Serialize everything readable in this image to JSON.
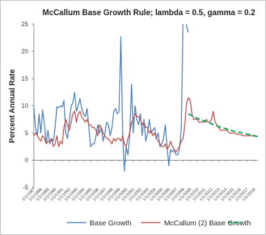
{
  "chart_data": {
    "type": "line",
    "title": "McCallum Base Growth Rule; lambda = 0.5, gamma = 0.2",
    "ylabel": "Percent Annual Rate",
    "xlabel": "",
    "ylim": [
      -5,
      25
    ],
    "yticks": [
      -5,
      0,
      5,
      10,
      15,
      20,
      25
    ],
    "grid": false,
    "legend_position": "bottom",
    "x_tick_labels": [
      "1/1/1987",
      "1/1/1988",
      "1/1/1989",
      "1/1/1990",
      "1/1/1991",
      "1/1/1992",
      "1/1/1993",
      "1/1/1994",
      "1/1/1995",
      "1/1/1996",
      "1/1/1997",
      "1/1/1998",
      "1/1/1999",
      "1/1/2000",
      "1/1/2001",
      "1/1/2002",
      "1/1/2003",
      "1/1/2004",
      "1/1/2005",
      "1/1/2006",
      "1/1/2007",
      "1/1/2008",
      "1/1/2009",
      "1/1/2010",
      "1/1/2011",
      "1/1/2012",
      "1/1/2013",
      "1/1/2014",
      "1/1/2015",
      "1/1/2016",
      "1/1/2017",
      "1/1/2018"
    ],
    "series": [
      {
        "name": "Base Growth",
        "color": "#4f81bd",
        "style": "solid",
        "points": [
          [
            1987.0,
            9.8
          ],
          [
            1987.25,
            6.0
          ],
          [
            1987.5,
            4.5
          ],
          [
            1987.75,
            8.5
          ],
          [
            1988.0,
            5.0
          ],
          [
            1988.25,
            9.2
          ],
          [
            1988.5,
            6.5
          ],
          [
            1988.75,
            3.0
          ],
          [
            1989.0,
            5.5
          ],
          [
            1989.25,
            3.0
          ],
          [
            1989.5,
            4.0
          ],
          [
            1989.75,
            3.5
          ],
          [
            1990.0,
            6.0
          ],
          [
            1990.25,
            9.8
          ],
          [
            1990.5,
            9.7
          ],
          [
            1990.75,
            10.0
          ],
          [
            1991.0,
            9.8
          ],
          [
            1991.25,
            11.0
          ],
          [
            1991.5,
            5.0
          ],
          [
            1991.75,
            4.0
          ],
          [
            1992.0,
            7.0
          ],
          [
            1992.25,
            10.0
          ],
          [
            1992.5,
            10.5
          ],
          [
            1992.75,
            12.5
          ],
          [
            1993.0,
            9.0
          ],
          [
            1993.25,
            10.0
          ],
          [
            1993.5,
            11.3
          ],
          [
            1993.75,
            9.5
          ],
          [
            1994.0,
            8.5
          ],
          [
            1994.25,
            8.0
          ],
          [
            1994.5,
            9.5
          ],
          [
            1994.75,
            6.0
          ],
          [
            1995.0,
            2.5
          ],
          [
            1995.25,
            3.0
          ],
          [
            1995.5,
            3.0
          ],
          [
            1995.75,
            4.5
          ],
          [
            1996.0,
            6.5
          ],
          [
            1996.25,
            5.0
          ],
          [
            1996.5,
            6.0
          ],
          [
            1996.75,
            3.5
          ],
          [
            1997.0,
            5.0
          ],
          [
            1997.25,
            7.0
          ],
          [
            1997.5,
            6.5
          ],
          [
            1997.75,
            4.5
          ],
          [
            1998.0,
            6.0
          ],
          [
            1998.25,
            9.0
          ],
          [
            1998.5,
            9.5
          ],
          [
            1998.75,
            8.5
          ],
          [
            1999.0,
            9.0
          ],
          [
            1999.25,
            22.7
          ],
          [
            1999.5,
            5.0
          ],
          [
            1999.75,
            -2.0
          ],
          [
            2000.0,
            2.5
          ],
          [
            2000.25,
            1.0
          ],
          [
            2000.5,
            4.5
          ],
          [
            2000.75,
            14.0
          ],
          [
            2001.0,
            5.0
          ],
          [
            2001.25,
            10.0
          ],
          [
            2001.5,
            7.5
          ],
          [
            2001.75,
            6.5
          ],
          [
            2002.0,
            8.5
          ],
          [
            2002.25,
            4.5
          ],
          [
            2002.5,
            7.5
          ],
          [
            2002.75,
            3.5
          ],
          [
            2003.0,
            5.0
          ],
          [
            2003.25,
            7.5
          ],
          [
            2003.5,
            5.0
          ],
          [
            2003.75,
            5.5
          ],
          [
            2004.0,
            6.0
          ],
          [
            2004.25,
            4.0
          ],
          [
            2004.5,
            5.0
          ],
          [
            2004.75,
            2.5
          ],
          [
            2005.0,
            3.0
          ],
          [
            2005.25,
            4.0
          ],
          [
            2005.5,
            6.5
          ],
          [
            2005.75,
            2.5
          ],
          [
            2006.0,
            -1.0
          ],
          [
            2006.25,
            2.0
          ],
          [
            2006.5,
            1.5
          ],
          [
            2006.75,
            2.0
          ],
          [
            2007.0,
            1.0
          ],
          [
            2007.25,
            1.0
          ],
          [
            2007.5,
            2.0
          ],
          [
            2007.75,
            6.0
          ],
          [
            2008.0,
            26.0
          ],
          [
            2008.25,
            30.0
          ],
          [
            2008.5,
            24.5
          ],
          [
            2008.75,
            23.5
          ]
        ]
      },
      {
        "name": "McCallum (2) Base Growth",
        "color": "#c0504d",
        "style": "solid",
        "points": [
          [
            1987.0,
            4.5
          ],
          [
            1987.25,
            5.0
          ],
          [
            1987.5,
            4.5
          ],
          [
            1987.75,
            4.0
          ],
          [
            1988.0,
            3.5
          ],
          [
            1988.25,
            4.5
          ],
          [
            1988.5,
            4.0
          ],
          [
            1988.75,
            3.0
          ],
          [
            1989.0,
            3.5
          ],
          [
            1989.25,
            3.5
          ],
          [
            1989.5,
            4.0
          ],
          [
            1989.75,
            2.5
          ],
          [
            1990.0,
            3.0
          ],
          [
            1990.25,
            4.5
          ],
          [
            1990.5,
            2.5
          ],
          [
            1990.75,
            3.5
          ],
          [
            1991.0,
            3.0
          ],
          [
            1991.25,
            6.0
          ],
          [
            1991.5,
            7.5
          ],
          [
            1991.75,
            6.5
          ],
          [
            1992.0,
            5.5
          ],
          [
            1992.25,
            7.0
          ],
          [
            1992.5,
            8.5
          ],
          [
            1992.75,
            9.0
          ],
          [
            1993.0,
            7.0
          ],
          [
            1993.25,
            8.5
          ],
          [
            1993.5,
            9.0
          ],
          [
            1993.75,
            8.0
          ],
          [
            1994.0,
            7.5
          ],
          [
            1994.25,
            7.0
          ],
          [
            1994.5,
            7.5
          ],
          [
            1994.75,
            6.5
          ],
          [
            1995.0,
            6.5
          ],
          [
            1995.25,
            6.0
          ],
          [
            1995.5,
            6.0
          ],
          [
            1995.75,
            5.5
          ],
          [
            1996.0,
            4.5
          ],
          [
            1996.25,
            6.5
          ],
          [
            1996.5,
            6.0
          ],
          [
            1996.75,
            5.0
          ],
          [
            1997.0,
            4.5
          ],
          [
            1997.25,
            4.0
          ],
          [
            1997.5,
            4.0
          ],
          [
            1997.75,
            3.5
          ],
          [
            1998.0,
            3.0
          ],
          [
            1998.25,
            4.0
          ],
          [
            1998.5,
            3.5
          ],
          [
            1998.75,
            4.0
          ],
          [
            1999.0,
            4.0
          ],
          [
            1999.25,
            3.5
          ],
          [
            1999.5,
            4.5
          ],
          [
            1999.75,
            3.0
          ],
          [
            2000.0,
            2.5
          ],
          [
            2000.25,
            4.0
          ],
          [
            2000.5,
            5.0
          ],
          [
            2000.75,
            7.0
          ],
          [
            2001.0,
            7.5
          ],
          [
            2001.25,
            8.5
          ],
          [
            2001.5,
            8.0
          ],
          [
            2001.75,
            8.0
          ],
          [
            2002.0,
            7.5
          ],
          [
            2002.25,
            6.5
          ],
          [
            2002.5,
            7.0
          ],
          [
            2002.75,
            6.0
          ],
          [
            2003.0,
            6.0
          ],
          [
            2003.25,
            5.0
          ],
          [
            2003.5,
            5.5
          ],
          [
            2003.75,
            4.5
          ],
          [
            2004.0,
            5.0
          ],
          [
            2004.25,
            4.0
          ],
          [
            2004.5,
            3.5
          ],
          [
            2004.75,
            3.0
          ],
          [
            2005.0,
            2.5
          ],
          [
            2005.25,
            2.5
          ],
          [
            2005.5,
            3.0
          ],
          [
            2005.75,
            2.0
          ],
          [
            2006.0,
            2.5
          ],
          [
            2006.25,
            3.5
          ],
          [
            2006.5,
            2.5
          ],
          [
            2006.75,
            2.0
          ],
          [
            2007.0,
            1.5
          ],
          [
            2007.25,
            2.0
          ],
          [
            2007.5,
            2.5
          ],
          [
            2007.75,
            3.5
          ],
          [
            2008.0,
            4.0
          ],
          [
            2008.25,
            6.5
          ],
          [
            2008.5,
            10.5
          ],
          [
            2008.75,
            11.5
          ],
          [
            2009.0,
            11.0
          ],
          [
            2009.25,
            8.5
          ],
          [
            2009.5,
            7.5
          ],
          [
            2009.75,
            7.5
          ],
          [
            2010.0,
            7.5
          ],
          [
            2010.25,
            7.0
          ],
          [
            2010.5,
            7.0
          ],
          [
            2010.75,
            7.0
          ],
          [
            2011.0,
            7.0
          ],
          [
            2011.25,
            7.5
          ],
          [
            2011.5,
            7.0
          ],
          [
            2011.75,
            7.0
          ],
          [
            2012.0,
            7.5
          ],
          [
            2012.25,
            9.0
          ],
          [
            2012.5,
            7.0
          ],
          [
            2012.75,
            6.5
          ],
          [
            2013.0,
            6.0
          ],
          [
            2013.25,
            5.5
          ],
          [
            2013.5,
            5.5
          ],
          [
            2013.75,
            5.5
          ],
          [
            2014.0,
            5.5
          ],
          [
            2014.25,
            5.5
          ],
          [
            2014.5,
            5.0
          ],
          [
            2014.75,
            5.0
          ],
          [
            2015.0,
            5.0
          ],
          [
            2015.25,
            5.0
          ],
          [
            2015.5,
            4.8
          ],
          [
            2015.75,
            4.8
          ],
          [
            2016.0,
            4.7
          ],
          [
            2016.25,
            4.6
          ],
          [
            2016.5,
            4.5
          ],
          [
            2016.75,
            4.5
          ],
          [
            2017.0,
            4.5
          ],
          [
            2017.25,
            4.5
          ],
          [
            2017.5,
            4.5
          ],
          [
            2017.75,
            4.5
          ],
          [
            2018.0,
            4.4
          ],
          [
            2018.25,
            4.4
          ],
          [
            2018.5,
            4.4
          ]
        ]
      },
      {
        "name": "",
        "color": "#00a550",
        "style": "dashed",
        "points": [
          [
            2008.75,
            8.5
          ],
          [
            2010.0,
            7.7
          ],
          [
            2011.0,
            7.2
          ],
          [
            2012.0,
            6.7
          ],
          [
            2013.0,
            6.2
          ],
          [
            2014.0,
            5.8
          ],
          [
            2015.0,
            5.4
          ],
          [
            2016.0,
            5.1
          ],
          [
            2017.0,
            4.8
          ],
          [
            2018.0,
            4.5
          ],
          [
            2018.5,
            4.35
          ]
        ]
      }
    ]
  }
}
